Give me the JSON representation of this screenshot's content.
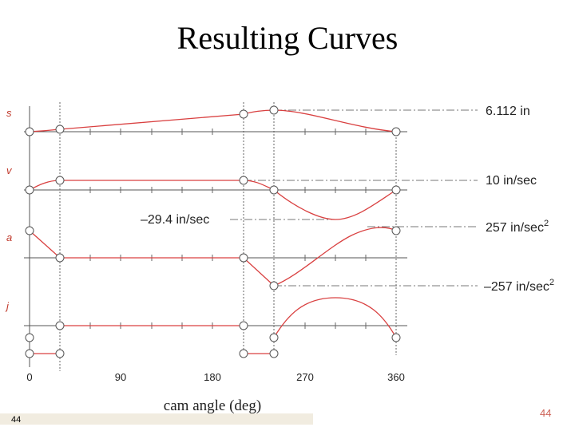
{
  "title": "Resulting Curves",
  "footer": {
    "slide_number": "44",
    "page_number": "44"
  },
  "colors": {
    "curve": "#d94040",
    "axis": "#555555",
    "guide": "#777777"
  },
  "diagram": {
    "rows": [
      {
        "name": "s"
      },
      {
        "name": "v"
      },
      {
        "name": "a"
      },
      {
        "name": "j"
      }
    ],
    "annotations": {
      "s_max": "6.112 in",
      "v_max": "10 in/sec",
      "v_min": "–29.4 in/sec",
      "a_max_base": "257 in/sec",
      "a_max_exp": "2",
      "a_min_base": "–257 in/sec",
      "a_min_exp": "2"
    },
    "x_ticks": [
      "0",
      "90",
      "180",
      "270",
      "360"
    ],
    "x_label": "cam angle (deg)"
  }
}
